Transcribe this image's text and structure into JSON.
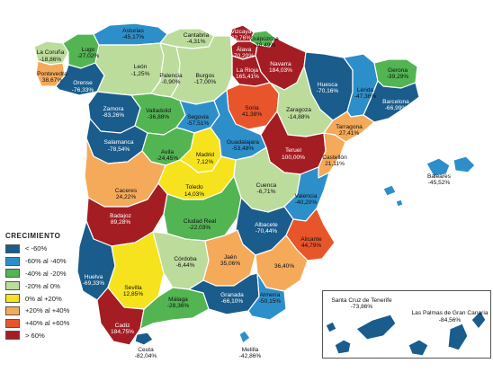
{
  "legend": {
    "title": "CRECIMIENTO",
    "items": [
      {
        "label": "< -60%",
        "color": "#1a5c8c"
      },
      {
        "label": "-60% al -40%",
        "color": "#2d8fca"
      },
      {
        "label": "-40% al -20%",
        "color": "#52b552"
      },
      {
        "label": "-20% al 0%",
        "color": "#bcdc9c"
      },
      {
        "label": "0% al +20%",
        "color": "#f7e31d"
      },
      {
        "label": "+20% al +40%",
        "color": "#f5aa5a"
      },
      {
        "label": "+40% al +60%",
        "color": "#e8552a"
      },
      {
        "label": "> 60%",
        "color": "#a41d23"
      }
    ]
  },
  "provinces": [
    {
      "id": "la-coruna",
      "name": "La Coruña",
      "value": "-18,86%",
      "class": 3
    },
    {
      "id": "lugo",
      "name": "Lugo",
      "value": "-27,02%",
      "class": 2
    },
    {
      "id": "pontevedra",
      "name": "Pontevedra",
      "value": "38,67%",
      "class": 5
    },
    {
      "id": "orense",
      "name": "Orense",
      "value": "-76,33%",
      "class": 0
    },
    {
      "id": "asturias",
      "name": "Asturias",
      "value": "-45,17%",
      "class": 1
    },
    {
      "id": "cantabria",
      "name": "Cantabria",
      "value": "-4,31%",
      "class": 3
    },
    {
      "id": "vizcaya",
      "name": "Vizcaya",
      "value": "62,76%",
      "class": 7
    },
    {
      "id": "guipuzcoa",
      "name": "Guipúzcoa",
      "value": "-38,49%",
      "class": 2
    },
    {
      "id": "alava",
      "name": "Álava",
      "value": "70,20%",
      "class": 7
    },
    {
      "id": "navarra",
      "name": "Navarra",
      "value": "184,03%",
      "class": 7
    },
    {
      "id": "la-rioja",
      "name": "La Rioja",
      "value": "165,41%",
      "class": 7
    },
    {
      "id": "leon",
      "name": "León",
      "value": "-1,25%",
      "class": 3
    },
    {
      "id": "palencia",
      "name": "Palencia",
      "value": "-0,90%",
      "class": 3
    },
    {
      "id": "burgos",
      "name": "Burgos",
      "value": "-17,00%",
      "class": 3
    },
    {
      "id": "huesca",
      "name": "Huesca",
      "value": "-70,16%",
      "class": 0
    },
    {
      "id": "lerida",
      "name": "Lérida",
      "value": "-47,36%",
      "class": 1
    },
    {
      "id": "gerona",
      "name": "Gerona",
      "value": "-39,29%",
      "class": 2
    },
    {
      "id": "barcelona",
      "name": "Barcelona",
      "value": "-66,99%",
      "class": 0
    },
    {
      "id": "zamora",
      "name": "Zamora",
      "value": "-83,26%",
      "class": 0
    },
    {
      "id": "valladolid",
      "name": "Valladolid",
      "value": "-36,88%",
      "class": 2
    },
    {
      "id": "soria",
      "name": "Soria",
      "value": "41,38%",
      "class": 6
    },
    {
      "id": "zaragoza",
      "name": "Zaragoza",
      "value": "-14,88%",
      "class": 3
    },
    {
      "id": "tarragona",
      "name": "Tarragona",
      "value": "27,41%",
      "class": 5
    },
    {
      "id": "salamanca",
      "name": "Salamanca",
      "value": "-78,54%",
      "class": 0
    },
    {
      "id": "segovia",
      "name": "Segovia",
      "value": "-57,51%",
      "class": 1
    },
    {
      "id": "avila",
      "name": "Avila",
      "value": "-24,45%",
      "class": 2
    },
    {
      "id": "madrid",
      "name": "Madrid",
      "value": "7,12%",
      "class": 4
    },
    {
      "id": "guadalajara",
      "name": "Guadalajara",
      "value": "-53,48%",
      "class": 1
    },
    {
      "id": "teruel",
      "name": "Teruel",
      "value": "100,00%",
      "class": 7
    },
    {
      "id": "castellon",
      "name": "Castellón",
      "value": "21,11%",
      "class": 5
    },
    {
      "id": "caceres",
      "name": "Caceres",
      "value": "24,22%",
      "class": 5
    },
    {
      "id": "toledo",
      "name": "Toledo",
      "value": "14,03%",
      "class": 4
    },
    {
      "id": "cuenca",
      "name": "Cuenca",
      "value": "-6,71%",
      "class": 3
    },
    {
      "id": "valencia",
      "name": "Valencia",
      "value": "-40,20%",
      "class": 1
    },
    {
      "id": "badajoz",
      "name": "Badajoz",
      "value": "89,28%",
      "class": 7
    },
    {
      "id": "ciudad-real",
      "name": "Ciudad Real",
      "value": "-22,03%",
      "class": 2
    },
    {
      "id": "albacete",
      "name": "Albacete",
      "value": "-70,44%",
      "class": 0
    },
    {
      "id": "alicante",
      "name": "Alicante",
      "value": "44,79%",
      "class": 6
    },
    {
      "id": "huelva",
      "name": "Huelva",
      "value": "-69,33%",
      "class": 0
    },
    {
      "id": "sevilla",
      "name": "Sevilla",
      "value": "12,85%",
      "class": 4
    },
    {
      "id": "cordoba",
      "name": "Córdoba",
      "value": "-6,44%",
      "class": 3
    },
    {
      "id": "jaen",
      "name": "Jaén",
      "value": "35,06%",
      "class": 5
    },
    {
      "id": "murcia",
      "name": "",
      "value": "36,40%",
      "class": 5
    },
    {
      "id": "cadiz",
      "name": "Cadiz",
      "value": "184,75%",
      "class": 7
    },
    {
      "id": "malaga",
      "name": "Málaga",
      "value": "-28,36%",
      "class": 2
    },
    {
      "id": "granada",
      "name": "Granada",
      "value": "-66,10%",
      "class": 0
    },
    {
      "id": "almeria",
      "name": "Almería",
      "value": "-50,15%",
      "class": 1
    },
    {
      "id": "baleares",
      "name": "Baleares",
      "value": "-45,52%",
      "class": 1
    },
    {
      "id": "ceuta",
      "name": "Ceuta",
      "value": "-82,04%",
      "class": 0
    },
    {
      "id": "melilla",
      "name": "Melilla",
      "value": "-42,86%",
      "class": 1
    },
    {
      "id": "santa-cruz",
      "name": "Santa Cruz de Tenerife",
      "value": "-73,86%",
      "class": 0
    },
    {
      "id": "las-palmas",
      "name": "Las Palmas de Gran Canaria",
      "value": "-84,56%",
      "class": 0
    }
  ]
}
